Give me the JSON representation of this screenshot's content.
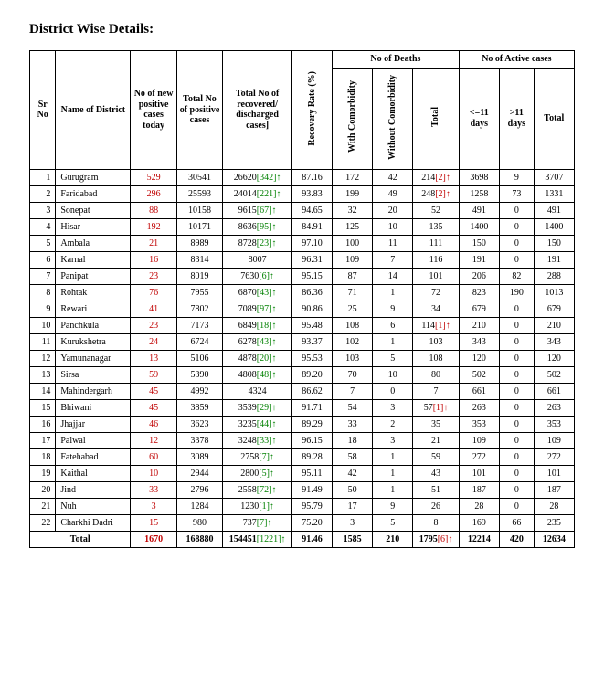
{
  "title": "District Wise Details:",
  "colors": {
    "new_cases": "#c00000",
    "delta_green": "#008000",
    "delta_red": "#c00000",
    "text": "#000000",
    "border": "#000000",
    "background": "#ffffff"
  },
  "headers": {
    "sr": "Sr No",
    "district": "Name of District",
    "new": "No of new positive cases today",
    "totalp": "Total No of positive cases",
    "recovered": "Total No of recovered/ discharged cases]",
    "rate": "Recovery Rate (%)",
    "deaths_group": "No of Deaths",
    "with_co": "With Comorbidity",
    "without_co": "Without Comorbidity",
    "death_total": "Total",
    "active_group": "No of Active cases",
    "le11": "<=11 days",
    "gt11": ">11 days",
    "active_total": "Total"
  },
  "rows": [
    {
      "sr": 1,
      "district": "Gurugram",
      "new": 529,
      "totalp": 30541,
      "rec": 26620,
      "recDelta": 342,
      "rate": "87.16",
      "wc": 172,
      "woc": 42,
      "dt": 214,
      "dtDelta": 2,
      "a11": 3698,
      "g11": 9,
      "at": 3707
    },
    {
      "sr": 2,
      "district": "Faridabad",
      "new": 296,
      "totalp": 25593,
      "rec": 24014,
      "recDelta": 221,
      "rate": "93.83",
      "wc": 199,
      "woc": 49,
      "dt": 248,
      "dtDelta": 2,
      "a11": 1258,
      "g11": 73,
      "at": 1331
    },
    {
      "sr": 3,
      "district": "Sonepat",
      "new": 88,
      "totalp": 10158,
      "rec": 9615,
      "recDelta": 67,
      "rate": "94.65",
      "wc": 32,
      "woc": 20,
      "dt": 52,
      "a11": 491,
      "g11": 0,
      "at": 491
    },
    {
      "sr": 4,
      "district": "Hisar",
      "new": 192,
      "totalp": 10171,
      "rec": 8636,
      "recDelta": 95,
      "rate": "84.91",
      "wc": 125,
      "woc": 10,
      "dt": 135,
      "a11": 1400,
      "g11": 0,
      "at": 1400
    },
    {
      "sr": 5,
      "district": "Ambala",
      "new": 21,
      "totalp": 8989,
      "rec": 8728,
      "recDelta": 23,
      "rate": "97.10",
      "wc": 100,
      "woc": 11,
      "dt": 111,
      "a11": 150,
      "g11": 0,
      "at": 150
    },
    {
      "sr": 6,
      "district": "Karnal",
      "new": 16,
      "totalp": 8314,
      "rec": 8007,
      "rate": "96.31",
      "wc": 109,
      "woc": 7,
      "dt": 116,
      "a11": 191,
      "g11": 0,
      "at": 191
    },
    {
      "sr": 7,
      "district": "Panipat",
      "new": 23,
      "totalp": 8019,
      "rec": 7630,
      "recDelta": 6,
      "rate": "95.15",
      "wc": 87,
      "woc": 14,
      "dt": 101,
      "a11": 206,
      "g11": 82,
      "at": 288
    },
    {
      "sr": 8,
      "district": "Rohtak",
      "new": 76,
      "totalp": 7955,
      "rec": 6870,
      "recDelta": 43,
      "rate": "86.36",
      "wc": 71,
      "woc": 1,
      "dt": 72,
      "a11": 823,
      "g11": 190,
      "at": 1013
    },
    {
      "sr": 9,
      "district": "Rewari",
      "new": 41,
      "totalp": 7802,
      "rec": 7089,
      "recDelta": 97,
      "rate": "90.86",
      "wc": 25,
      "woc": 9,
      "dt": 34,
      "a11": 679,
      "g11": 0,
      "at": 679
    },
    {
      "sr": 10,
      "district": "Panchkula",
      "new": 23,
      "totalp": 7173,
      "rec": 6849,
      "recDelta": 18,
      "rate": "95.48",
      "wc": 108,
      "woc": 6,
      "dt": 114,
      "dtDelta": 1,
      "a11": 210,
      "g11": 0,
      "at": 210
    },
    {
      "sr": 11,
      "district": "Kurukshetra",
      "new": 24,
      "totalp": 6724,
      "rec": 6278,
      "recDelta": 43,
      "rate": "93.37",
      "wc": 102,
      "woc": 1,
      "dt": 103,
      "a11": 343,
      "g11": 0,
      "at": 343
    },
    {
      "sr": 12,
      "district": "Yamunanagar",
      "new": 13,
      "totalp": 5106,
      "rec": 4878,
      "recDelta": 20,
      "rate": "95.53",
      "wc": 103,
      "woc": 5,
      "dt": 108,
      "a11": 120,
      "g11": 0,
      "at": 120
    },
    {
      "sr": 13,
      "district": "Sirsa",
      "new": 59,
      "totalp": 5390,
      "rec": 4808,
      "recDelta": 48,
      "rate": "89.20",
      "wc": 70,
      "woc": 10,
      "dt": 80,
      "a11": 502,
      "g11": 0,
      "at": 502
    },
    {
      "sr": 14,
      "district": "Mahindergarh",
      "new": 45,
      "totalp": 4992,
      "rec": 4324,
      "rate": "86.62",
      "wc": 7,
      "woc": 0,
      "dt": 7,
      "a11": 661,
      "g11": 0,
      "at": 661
    },
    {
      "sr": 15,
      "district": "Bhiwani",
      "new": 45,
      "totalp": 3859,
      "rec": 3539,
      "recDelta": 29,
      "rate": "91.71",
      "wc": 54,
      "woc": 3,
      "dt": 57,
      "dtDelta": 1,
      "a11": 263,
      "g11": 0,
      "at": 263
    },
    {
      "sr": 16,
      "district": "Jhajjar",
      "new": 46,
      "totalp": 3623,
      "rec": 3235,
      "recDelta": 44,
      "rate": "89.29",
      "wc": 33,
      "woc": 2,
      "dt": 35,
      "a11": 353,
      "g11": 0,
      "at": 353
    },
    {
      "sr": 17,
      "district": "Palwal",
      "new": 12,
      "totalp": 3378,
      "rec": 3248,
      "recDelta": 33,
      "rate": "96.15",
      "wc": 18,
      "woc": 3,
      "dt": 21,
      "a11": 109,
      "g11": 0,
      "at": 109
    },
    {
      "sr": 18,
      "district": "Fatehabad",
      "new": 60,
      "totalp": 3089,
      "rec": 2758,
      "recDelta": 7,
      "rate": "89.28",
      "wc": 58,
      "woc": 1,
      "dt": 59,
      "a11": 272,
      "g11": 0,
      "at": 272
    },
    {
      "sr": 19,
      "district": "Kaithal",
      "new": 10,
      "totalp": 2944,
      "rec": 2800,
      "recDelta": 5,
      "rate": "95.11",
      "wc": 42,
      "woc": 1,
      "dt": 43,
      "a11": 101,
      "g11": 0,
      "at": 101
    },
    {
      "sr": 20,
      "district": "Jind",
      "new": 33,
      "totalp": 2796,
      "rec": 2558,
      "recDelta": 72,
      "rate": "91.49",
      "wc": 50,
      "woc": 1,
      "dt": 51,
      "a11": 187,
      "g11": 0,
      "at": 187
    },
    {
      "sr": 21,
      "district": "Nuh",
      "new": 3,
      "totalp": 1284,
      "rec": 1230,
      "recDelta": 1,
      "rate": "95.79",
      "wc": 17,
      "woc": 9,
      "dt": 26,
      "a11": 28,
      "g11": 0,
      "at": 28
    },
    {
      "sr": 22,
      "district": "Charkhi Dadri",
      "new": 15,
      "totalp": 980,
      "rec": 737,
      "recDelta": 7,
      "rate": "75.20",
      "wc": 3,
      "woc": 5,
      "dt": 8,
      "a11": 169,
      "g11": 66,
      "at": 235
    }
  ],
  "total": {
    "label": "Total",
    "new": 1670,
    "totalp": 168880,
    "rec": 154451,
    "recDelta": 1221,
    "rate": "91.46",
    "wc": 1585,
    "woc": 210,
    "dt": 1795,
    "dtDelta": 6,
    "a11": 12214,
    "g11": 420,
    "at": 12634
  }
}
